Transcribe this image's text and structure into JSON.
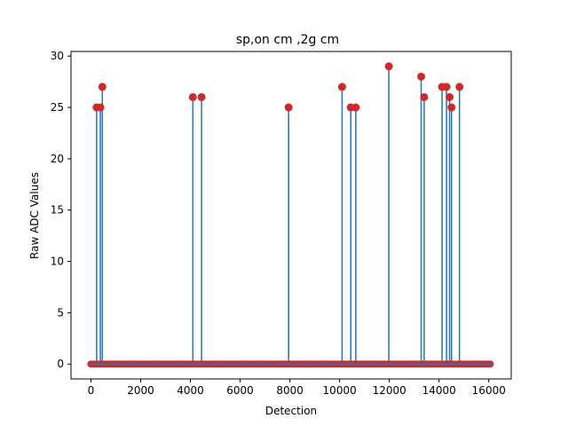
{
  "chart_data": {
    "type": "scatter",
    "title": "sp,on cm ,2g cm",
    "xlabel": "Detection",
    "ylabel": "Raw ADC Values",
    "xlim": [
      -800,
      16900
    ],
    "ylim": [
      -1.45,
      30.45
    ],
    "x_ticks": [
      0,
      2000,
      4000,
      6000,
      8000,
      10000,
      12000,
      14000,
      16000
    ],
    "y_ticks": [
      0,
      5,
      10,
      15,
      20,
      25,
      30
    ],
    "x_tick_labels": [
      "0",
      "2000",
      "4000",
      "6000",
      "8000",
      "10000",
      "12000",
      "14000",
      "16000"
    ],
    "y_tick_labels": [
      "0",
      "5",
      "10",
      "15",
      "20",
      "25",
      "30"
    ],
    "baseline": {
      "x_start": 0,
      "x_end": 16150,
      "value": 0
    },
    "points": [
      {
        "x": 230,
        "y": 25
      },
      {
        "x": 380,
        "y": 25
      },
      {
        "x": 460,
        "y": 27
      },
      {
        "x": 4100,
        "y": 26
      },
      {
        "x": 4450,
        "y": 26
      },
      {
        "x": 7950,
        "y": 25
      },
      {
        "x": 10100,
        "y": 27
      },
      {
        "x": 10450,
        "y": 25
      },
      {
        "x": 10650,
        "y": 25
      },
      {
        "x": 11980,
        "y": 29
      },
      {
        "x": 13280,
        "y": 28
      },
      {
        "x": 13400,
        "y": 26
      },
      {
        "x": 14120,
        "y": 27
      },
      {
        "x": 14300,
        "y": 27
      },
      {
        "x": 14420,
        "y": 26
      },
      {
        "x": 14500,
        "y": 25
      },
      {
        "x": 14820,
        "y": 27
      }
    ],
    "grid": false,
    "legend": "none",
    "colors": {
      "stem": "#1f77b4",
      "marker": "#d62728"
    }
  }
}
